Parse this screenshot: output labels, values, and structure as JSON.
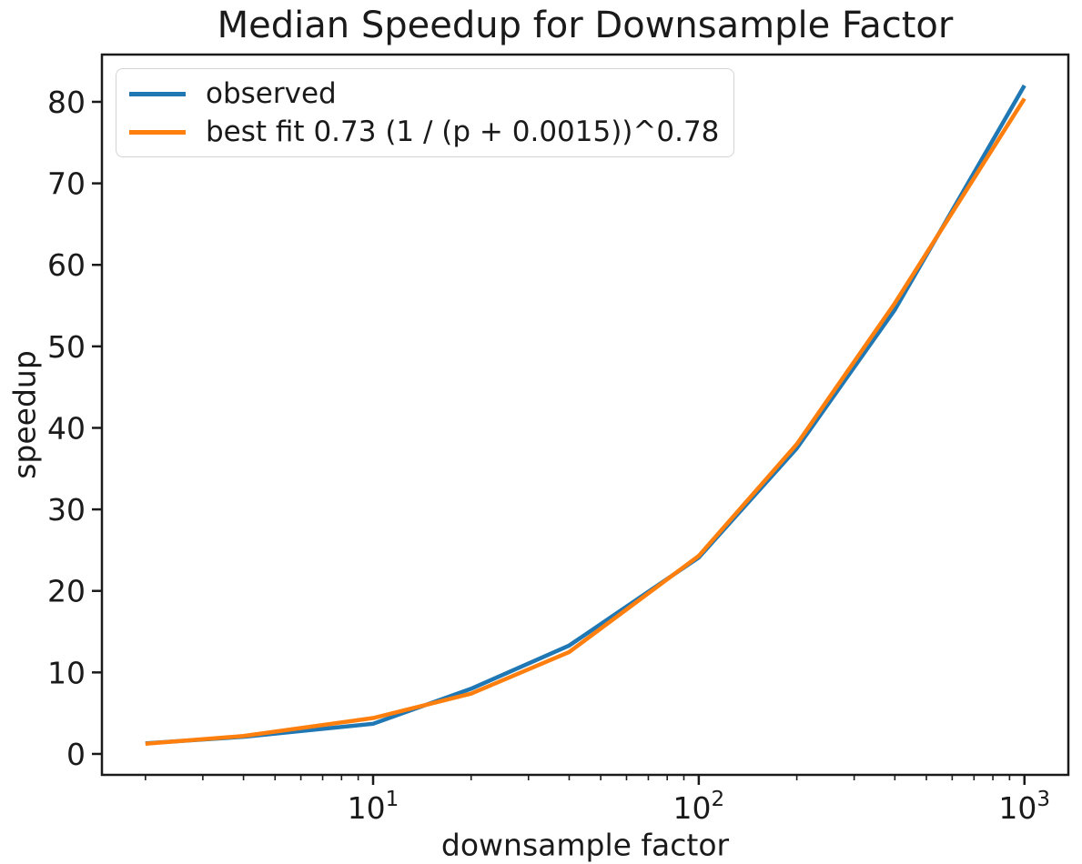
{
  "chart_data": {
    "type": "line",
    "title": "Median Speedup for Downsample Factor",
    "xlabel": "downsample factor",
    "ylabel": "speedup",
    "x_scale": "log10",
    "grid": false,
    "xlim": [
      1.47,
      1364
    ],
    "ylim": [
      -2.57,
      85.8
    ],
    "y_ticks": [
      0,
      10,
      20,
      30,
      40,
      50,
      60,
      70,
      80
    ],
    "x_major_ticks": [
      {
        "value": 10,
        "label_base": "10",
        "label_exp": "1"
      },
      {
        "value": 100,
        "label_base": "10",
        "label_exp": "2"
      },
      {
        "value": 1000,
        "label_base": "10",
        "label_exp": "3"
      }
    ],
    "x_minor_ticks": [
      2,
      3,
      4,
      5,
      6,
      7,
      8,
      9,
      20,
      30,
      40,
      50,
      60,
      70,
      80,
      90,
      200,
      300,
      400,
      500,
      600,
      700,
      800,
      900
    ],
    "x": [
      2,
      4,
      10,
      20,
      40,
      100,
      200,
      400,
      1000
    ],
    "series": [
      {
        "name": "observed",
        "color": "#1f77b4",
        "values": [
          1.3,
          2.1,
          3.7,
          8.0,
          13.3,
          24.1,
          37.5,
          54.5,
          82.0
        ]
      },
      {
        "name": "best fit 0.73 (1 / (p + 0.0015))^0.78",
        "color": "#ff7f0e",
        "values": [
          1.25,
          2.2,
          4.4,
          7.4,
          12.5,
          24.3,
          38.0,
          55.3,
          80.4
        ]
      }
    ],
    "legend": {
      "position": "upper left"
    }
  }
}
